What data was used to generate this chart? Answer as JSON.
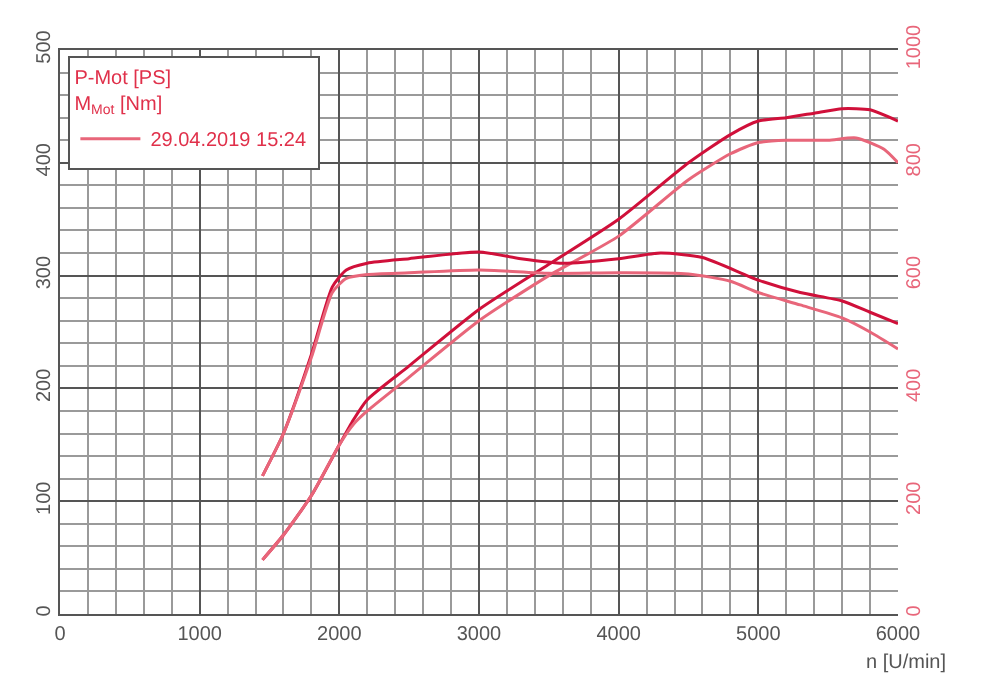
{
  "chart_data": {
    "type": "line",
    "xlabel": "n [U/min]",
    "legend_title": "P-Mot [PS]\nM$_{Mot}$ [Nm]",
    "xlim": [
      0,
      6000
    ],
    "xticks": [
      0,
      1000,
      2000,
      3000,
      4000,
      5000,
      6000
    ],
    "ylim": [
      0,
      500
    ],
    "yticks": [
      0,
      100,
      200,
      300,
      400,
      500
    ],
    "y2lim": [
      0,
      1000
    ],
    "y2ticks": [
      0,
      200,
      400,
      600,
      800,
      1000
    ],
    "grid": true,
    "legend": "top left",
    "marker": "none",
    "line_style": "solid",
    "series": [
      {
        "color": "#d0103a",
        "x": [
          1450,
          1600,
          1800,
          2000,
          2100,
          2200,
          2500,
          3000,
          3500,
          4000,
          4500,
          4800,
          5000,
          5200,
          5400,
          5600,
          5800,
          6000
        ],
        "values": [
          48,
          70,
          105,
          150,
          172,
          190,
          220,
          270,
          310,
          350,
          400,
          425,
          437,
          440,
          444,
          448,
          447,
          437
        ]
      },
      {
        "color": "#e8667a",
        "x": [
          1450,
          1600,
          1800,
          2000,
          2100,
          2200,
          2500,
          3000,
          3500,
          4000,
          4500,
          4800,
          5000,
          5200,
          5500,
          5700,
          5900,
          6000
        ],
        "values": [
          48,
          70,
          105,
          150,
          168,
          180,
          210,
          260,
          300,
          335,
          385,
          408,
          418,
          420,
          420,
          422,
          412,
          400
        ]
      },
      {
        "color": "#d0103a",
        "axis": "y2",
        "x": [
          1450,
          1600,
          1800,
          1950,
          2050,
          2200,
          2500,
          3000,
          3300,
          3600,
          4000,
          4300,
          4600,
          5000,
          5300,
          5600,
          5800,
          6000
        ],
        "values": [
          245,
          320,
          460,
          580,
          610,
          622,
          630,
          642,
          630,
          622,
          630,
          640,
          632,
          592,
          570,
          555,
          535,
          515
        ]
      },
      {
        "name": "29.04.2019 15:24",
        "color": "#e8667a",
        "axis": "y2",
        "x": [
          1450,
          1600,
          1800,
          1950,
          2050,
          2200,
          2500,
          3000,
          3500,
          4000,
          4500,
          4800,
          5000,
          5300,
          5600,
          5800,
          6000
        ],
        "values": [
          245,
          320,
          455,
          570,
          595,
          602,
          605,
          610,
          604,
          605,
          603,
          590,
          570,
          548,
          525,
          500,
          470
        ]
      }
    ]
  }
}
